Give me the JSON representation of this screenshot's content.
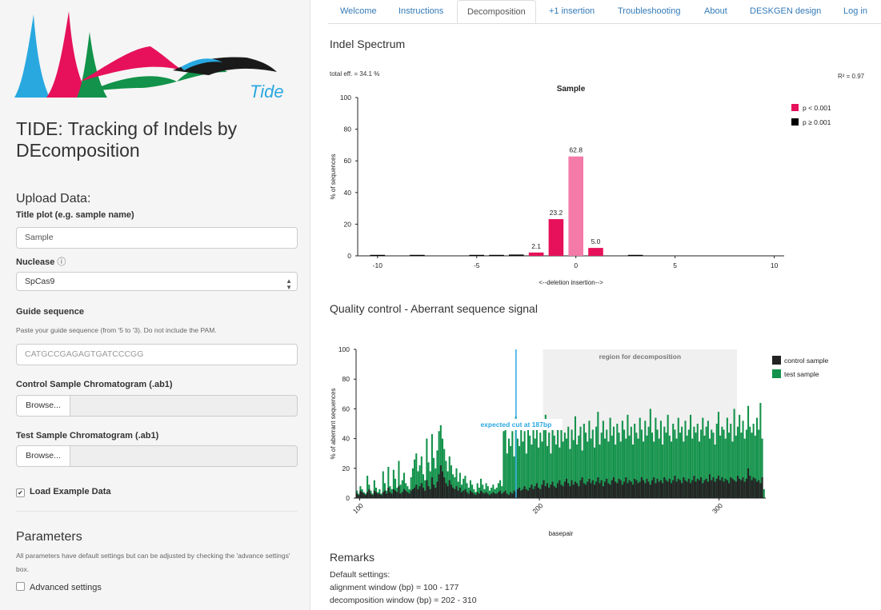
{
  "sidebar": {
    "logo_text": "Tide",
    "app_title": "TIDE: Tracking of Indels by DEcomposition",
    "upload_heading": "Upload Data:",
    "title_plot_label": "Title plot (e.g. sample name)",
    "title_plot_value": "Sample",
    "nuclease_label": "Nuclease",
    "nuclease_info_glyph": "ⓘ",
    "nuclease_value": "SpCas9",
    "guide_label": "Guide sequence",
    "guide_help": "Paste your guide sequence (from '5 to '3). Do not include the PAM.",
    "guide_placeholder": "CATGCCGAGAGTGATCCCGG",
    "control_label": "Control Sample Chromatogram (.ab1)",
    "test_label": "Test Sample Chromatogram (.ab1)",
    "browse_label": "Browse...",
    "load_example_label": "Load Example Data",
    "load_example_checked": true,
    "parameters_heading": "Parameters",
    "parameters_help": "All parameters have default settings but can be adjusted by checking the 'advance settings' box.",
    "advanced_label": "Advanced settings",
    "advanced_checked": false
  },
  "tabs": [
    "Welcome",
    "Instructions",
    "Decomposition",
    "+1 insertion",
    "Troubleshooting",
    "About",
    "DESKGEN design",
    "Log in"
  ],
  "active_tab": "Decomposition",
  "indel": {
    "section_title": "Indel Spectrum",
    "total_eff": "total eff. = 34.1 %",
    "r2": "R² = 0.97"
  },
  "qc": {
    "section_title": "Quality control - Aberrant sequence signal"
  },
  "remarks": {
    "title": "Remarks",
    "lines": [
      "Default settings:",
      "alignment window (bp) = 100 - 177",
      "decomposition window (bp) = 202 - 310"
    ]
  },
  "colors": {
    "significant": "#e6115a",
    "significant_light": "#f47ba8",
    "nonsignificant": "#000000",
    "control": "#222222",
    "test": "#12924a",
    "cut_line": "#29a8e0",
    "link": "#337ab7"
  },
  "chart_data": [
    {
      "type": "bar",
      "title": "Sample",
      "xlabel": "<--deletion    insertion-->",
      "ylabel": "% of sequences",
      "xlim": [
        -11,
        10.5
      ],
      "ylim": [
        0,
        100
      ],
      "xticks": [
        -10,
        -5,
        0,
        5,
        10
      ],
      "yticks": [
        0,
        20,
        40,
        60,
        80,
        100
      ],
      "legend": [
        {
          "label": "p < 0.001",
          "color": "#e6115a"
        },
        {
          "label": "p ≥ 0.001",
          "color": "#000000"
        }
      ],
      "legend_position": "top-right",
      "bars": [
        {
          "x": -10,
          "y": 0.2,
          "sig": false
        },
        {
          "x": -8,
          "y": 0.2,
          "sig": false
        },
        {
          "x": -5,
          "y": 0.1,
          "sig": false
        },
        {
          "x": -4,
          "y": 0.4,
          "sig": false
        },
        {
          "x": -3,
          "y": 0.8,
          "sig": false
        },
        {
          "x": -2,
          "y": 2.1,
          "sig": true,
          "label": "2.1"
        },
        {
          "x": -1,
          "y": 23.2,
          "sig": true,
          "label": "23.2"
        },
        {
          "x": 0,
          "y": 62.8,
          "sig": true,
          "light": true,
          "label": "62.8"
        },
        {
          "x": 1,
          "y": 5.0,
          "sig": true,
          "label": "5.0"
        },
        {
          "x": 3,
          "y": 0.4,
          "sig": false
        }
      ]
    },
    {
      "type": "bar",
      "title": "",
      "xlabel": "basepair",
      "ylabel": "% of aberrant sequences",
      "xlim": [
        98,
        326
      ],
      "ylim": [
        0,
        100
      ],
      "xticks": [
        100,
        200,
        300
      ],
      "yticks": [
        0,
        20,
        40,
        60,
        80,
        100
      ],
      "shaded_region": {
        "from": 202,
        "to": 310,
        "label": "region for decomposition"
      },
      "cut": {
        "x": 187,
        "label": "expected cut at 187bp"
      },
      "legend": [
        {
          "label": "control sample",
          "color": "#222222"
        },
        {
          "label": "test sample",
          "color": "#12924a"
        }
      ],
      "legend_position": "top-right",
      "series": [
        {
          "name": "control sample",
          "values": [
            3,
            2,
            5,
            4,
            3,
            2,
            4,
            6,
            3,
            2,
            5,
            4,
            3,
            3,
            2,
            4,
            5,
            3,
            7,
            4,
            3,
            6,
            5,
            4,
            8,
            3,
            4,
            6,
            5,
            4,
            3,
            5,
            6,
            7,
            9,
            6,
            8,
            10,
            7,
            5,
            12,
            8,
            6,
            14,
            9,
            7,
            11,
            16,
            22,
            18,
            14,
            10,
            8,
            12,
            9,
            7,
            6,
            8,
            5,
            7,
            4,
            5,
            6,
            4,
            3,
            5,
            4,
            3,
            2,
            4,
            3,
            5,
            4,
            3,
            4,
            3,
            2,
            3,
            4,
            3,
            3,
            4,
            5,
            3,
            4,
            5,
            3,
            2,
            4,
            3,
            5,
            4,
            6,
            7,
            5,
            6,
            8,
            6,
            5,
            7,
            9,
            6,
            8,
            10,
            7,
            6,
            9,
            12,
            8,
            10,
            7,
            9,
            11,
            8,
            7,
            10,
            12,
            9,
            8,
            11,
            13,
            10,
            8,
            12,
            9,
            11,
            10,
            8,
            12,
            14,
            10,
            9,
            11,
            13,
            10,
            12,
            9,
            11,
            14,
            10,
            12,
            8,
            11,
            13,
            10,
            9,
            12,
            14,
            11,
            10,
            13,
            12,
            9,
            11,
            14,
            10,
            12,
            11,
            9,
            13,
            12,
            10,
            11,
            14,
            12,
            10,
            13,
            11,
            9,
            12,
            14,
            10,
            13,
            11,
            12,
            10,
            14,
            12,
            11,
            13,
            10,
            12,
            15,
            11,
            13,
            12,
            10,
            14,
            12,
            11,
            13,
            10,
            12,
            15,
            11,
            13,
            12,
            14,
            10,
            12,
            13,
            11,
            16,
            12,
            14,
            11,
            13,
            15,
            12,
            14,
            11,
            13,
            12,
            10,
            14,
            13,
            12,
            11,
            15,
            13,
            12,
            14,
            11,
            13,
            20,
            15,
            12,
            14,
            13,
            11,
            12,
            10,
            14
          ]
        },
        {
          "name": "test sample",
          "values": [
            5,
            3,
            8,
            6,
            4,
            3,
            15,
            9,
            5,
            3,
            12,
            7,
            4,
            6,
            3,
            18,
            10,
            5,
            21,
            8,
            6,
            19,
            13,
            7,
            25,
            9,
            12,
            17,
            10,
            8,
            6,
            14,
            20,
            26,
            30,
            18,
            22,
            28,
            16,
            12,
            40,
            24,
            18,
            43,
            27,
            20,
            32,
            45,
            49,
            40,
            33,
            25,
            18,
            28,
            22,
            16,
            14,
            20,
            11,
            17,
            9,
            13,
            15,
            10,
            7,
            12,
            9,
            6,
            4,
            10,
            7,
            13,
            9,
            6,
            10,
            8,
            5,
            7,
            9,
            6,
            7,
            10,
            12,
            8,
            45,
            52,
            30,
            40,
            35,
            45,
            28,
            55,
            40,
            35,
            48,
            38,
            45,
            30,
            50,
            42,
            36,
            46,
            40,
            52,
            34,
            44,
            38,
            48,
            56,
            35,
            44,
            30,
            50,
            42,
            36,
            46,
            34,
            52,
            38,
            44,
            40,
            48,
            33,
            46,
            39,
            55,
            36,
            42,
            48,
            32,
            50,
            44,
            38,
            52,
            40,
            46,
            34,
            48,
            58,
            36,
            44,
            52,
            40,
            46,
            38,
            54,
            42,
            48,
            36,
            50,
            44,
            38,
            52,
            46,
            40,
            56,
            42,
            48,
            36,
            50,
            44,
            40,
            54,
            46,
            38,
            52,
            42,
            48,
            60,
            44,
            38,
            54,
            46,
            40,
            52,
            36,
            48,
            44,
            56,
            42,
            38,
            50,
            46,
            40,
            54,
            44,
            48,
            38,
            52,
            42,
            46,
            56,
            40,
            48,
            44,
            50,
            38,
            46,
            54,
            42,
            48,
            52,
            40,
            46,
            44,
            36,
            50,
            58,
            42,
            48,
            46,
            40,
            54,
            44,
            50,
            38,
            60,
            42,
            48,
            56,
            44,
            52,
            40,
            46,
            62,
            48,
            44,
            50,
            42,
            54,
            46,
            64,
            40,
            6
          ]
        }
      ]
    }
  ]
}
